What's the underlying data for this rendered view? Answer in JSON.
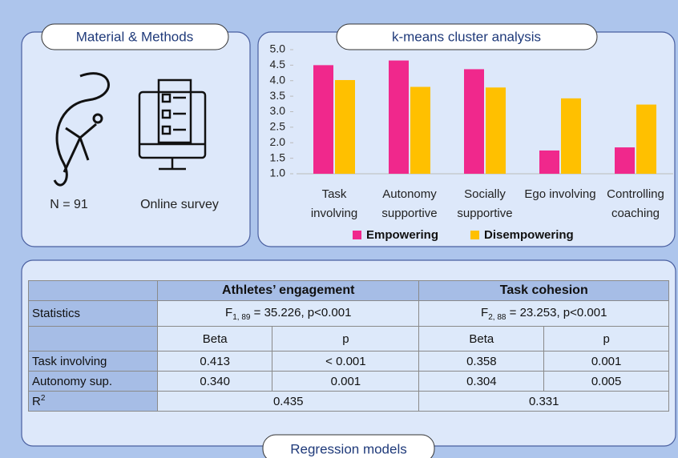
{
  "methods": {
    "title": "Material & Methods",
    "sample": "N = 91",
    "instrument": "Online survey"
  },
  "chart_data": {
    "type": "bar",
    "title": "k-means cluster analysis",
    "categories": [
      "Task involving",
      "Autonomy supportive",
      "Socially supportive",
      "Ego involving",
      "Controlling coaching"
    ],
    "series": [
      {
        "name": "Empowering",
        "color": "#f0288c",
        "values": [
          4.5,
          4.65,
          4.37,
          1.75,
          1.85
        ]
      },
      {
        "name": "Disempowering",
        "color": "#ffc000",
        "values": [
          4.02,
          3.8,
          3.78,
          3.43,
          3.23
        ]
      }
    ],
    "ylim": [
      1,
      5
    ],
    "yticks": [
      {
        "value": 1,
        "label": "1.0"
      },
      {
        "value": 1.5,
        "label": "1.5"
      },
      {
        "value": 2,
        "label": "2.0"
      },
      {
        "value": 2.5,
        "label": "2.5"
      },
      {
        "value": 3,
        "label": "3.0"
      },
      {
        "value": 3.5,
        "label": "3.5"
      },
      {
        "value": 4,
        "label": "4.0"
      },
      {
        "value": 4.5,
        "label": "4.5"
      },
      {
        "value": 5,
        "label": "5.0"
      }
    ],
    "legend": "bottom"
  },
  "regression": {
    "title": "Regression models",
    "table": {
      "groups": [
        "Athletes’ engagement",
        "Task cohesion"
      ],
      "statistics": {
        "label": "Statistics",
        "cells": [
          {
            "pre": "F",
            "sub": "1, 89",
            "post": " = 35.226, p<0.001"
          },
          {
            "pre": "F",
            "sub": "2, 88",
            "post": " = 23.253, p<0.001"
          }
        ]
      },
      "columns": [
        "Beta",
        "p",
        "Beta",
        "p"
      ],
      "rows": [
        {
          "label": "Task involving",
          "cells": [
            "0.413",
            "< 0.001",
            "0.358",
            "0.001"
          ]
        },
        {
          "label": "Autonomy sup.",
          "cells": [
            "0.340",
            "0.001",
            "0.304",
            "0.005"
          ]
        }
      ],
      "r2": {
        "pre": "R",
        "sup": "2",
        "cells": [
          "0.435",
          "0.331"
        ]
      }
    }
  }
}
